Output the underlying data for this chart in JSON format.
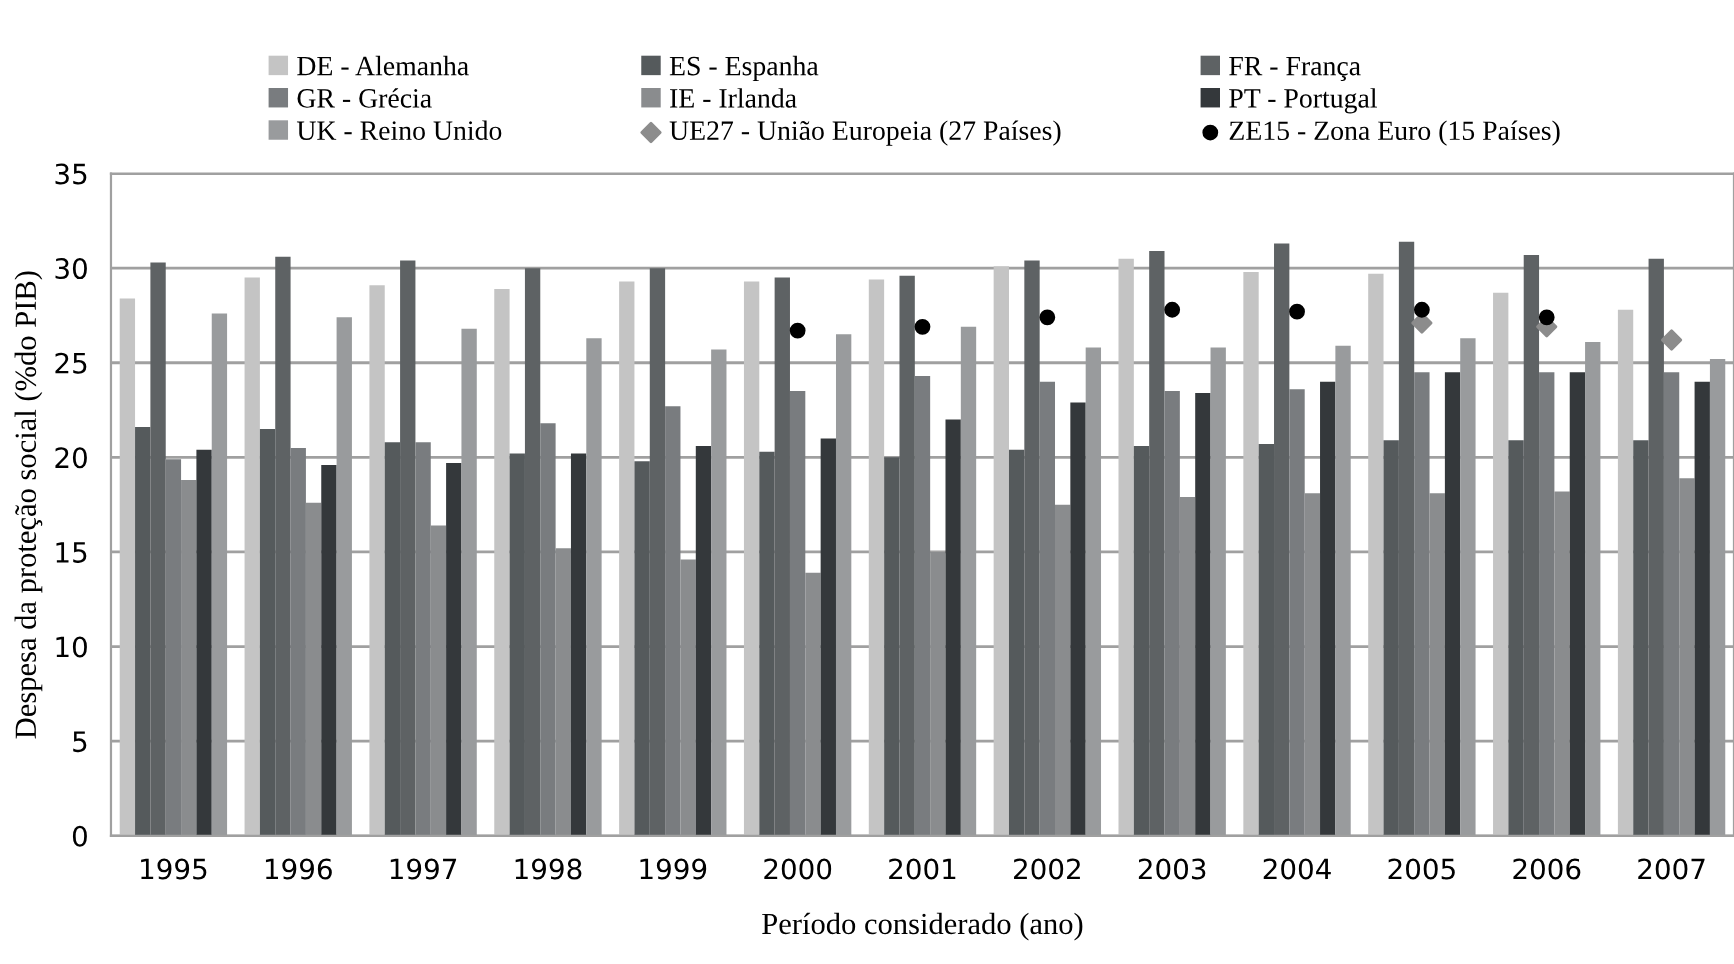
{
  "chart_data": {
    "type": "bar",
    "xlabel": "Período considerado (ano)",
    "ylabel": "Despesa da proteção social (%do PIB)",
    "categories": [
      "1995",
      "1996",
      "1997",
      "1998",
      "1999",
      "2000",
      "2001",
      "2002",
      "2003",
      "2004",
      "2005",
      "2006",
      "2007"
    ],
    "series": [
      {
        "name": "DE - Alemanha",
        "color": "#c4c4c4",
        "values": [
          28.4,
          29.5,
          29.1,
          28.9,
          29.3,
          29.3,
          29.4,
          30.1,
          30.5,
          29.8,
          29.7,
          28.7,
          27.8
        ]
      },
      {
        "name": "ES - Espanha",
        "color": "#555a5c",
        "values": [
          21.6,
          21.5,
          20.8,
          20.2,
          19.8,
          20.3,
          20.0,
          20.4,
          20.6,
          20.7,
          20.9,
          20.9,
          20.9
        ]
      },
      {
        "name": "FR - França",
        "color": "#5e6264",
        "values": [
          30.3,
          30.6,
          30.4,
          30.0,
          30.0,
          29.5,
          29.6,
          30.4,
          30.9,
          31.3,
          31.4,
          30.7,
          30.5
        ]
      },
      {
        "name": "GR - Grécia",
        "color": "#797c7f",
        "values": [
          19.9,
          20.5,
          20.8,
          21.8,
          22.7,
          23.5,
          24.3,
          24.0,
          23.5,
          23.6,
          24.5,
          24.5,
          24.5
        ]
      },
      {
        "name": "IE - Irlanda",
        "color": "#8a8c8e",
        "values": [
          18.8,
          17.6,
          16.4,
          15.2,
          14.6,
          13.9,
          15.0,
          17.5,
          17.9,
          18.1,
          18.1,
          18.2,
          18.9
        ]
      },
      {
        "name": "PT - Portugal",
        "color": "#34383b",
        "values": [
          20.4,
          19.6,
          19.7,
          20.2,
          20.6,
          21.0,
          22.0,
          22.9,
          23.4,
          24.0,
          24.5,
          24.5,
          24.0
        ]
      },
      {
        "name": "UK - Reino Unido",
        "color": "#999b9d",
        "values": [
          27.6,
          27.4,
          26.8,
          26.3,
          25.7,
          26.5,
          26.9,
          25.8,
          25.8,
          25.9,
          26.3,
          26.1,
          25.2
        ]
      },
      {
        "name": "UE27 - União Europeia (27 Países)",
        "type": "scatter",
        "marker": "diamond",
        "color": "#8c8c8c",
        "values": [
          null,
          null,
          null,
          null,
          null,
          null,
          null,
          null,
          null,
          null,
          27.1,
          26.9,
          26.2
        ]
      },
      {
        "name": "ZE15 - Zona Euro (15 Países)",
        "type": "scatter",
        "marker": "circle",
        "color": "#000000",
        "values": [
          null,
          null,
          null,
          null,
          null,
          26.7,
          26.9,
          27.4,
          27.8,
          27.7,
          27.8,
          27.4,
          null
        ]
      }
    ],
    "ylim": [
      0,
      35
    ],
    "yticks": [
      0,
      5,
      10,
      15,
      20,
      25,
      30,
      35
    ],
    "grid": "y",
    "legend": "top"
  }
}
